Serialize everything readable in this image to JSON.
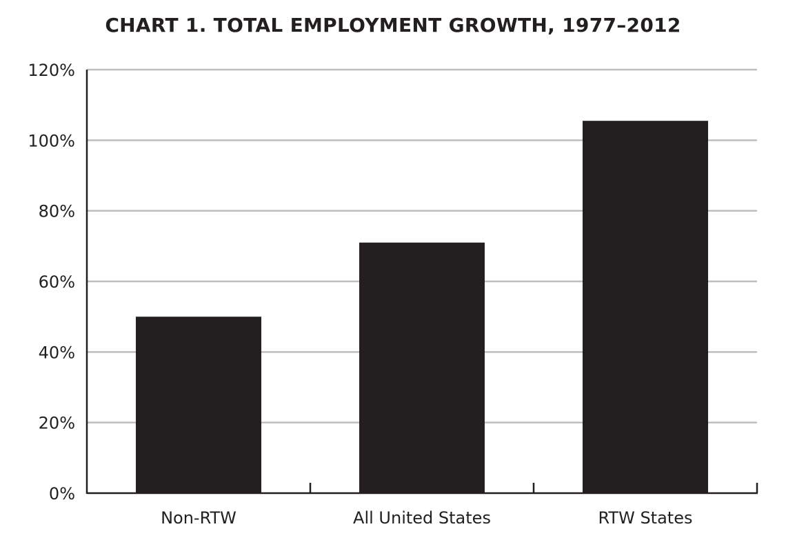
{
  "chart_data": {
    "type": "bar",
    "title": "CHART 1. TOTAL EMPLOYMENT GROWTH, 1977–2012",
    "categories": [
      "Non-RTW",
      "All United States",
      "RTW States"
    ],
    "values": [
      50,
      71,
      105.5
    ],
    "ylim": [
      0,
      120
    ],
    "yticks": [
      0,
      20,
      40,
      60,
      80,
      100,
      120
    ],
    "ytick_labels": [
      "0%",
      "20%",
      "40%",
      "60%",
      "80%",
      "100%",
      "120%"
    ],
    "xlabel": "",
    "ylabel": "",
    "grid": true,
    "legend": "none",
    "colors": {
      "bar": "#231f20",
      "grid": "#bdbdbd",
      "axis": "#231f20"
    }
  }
}
